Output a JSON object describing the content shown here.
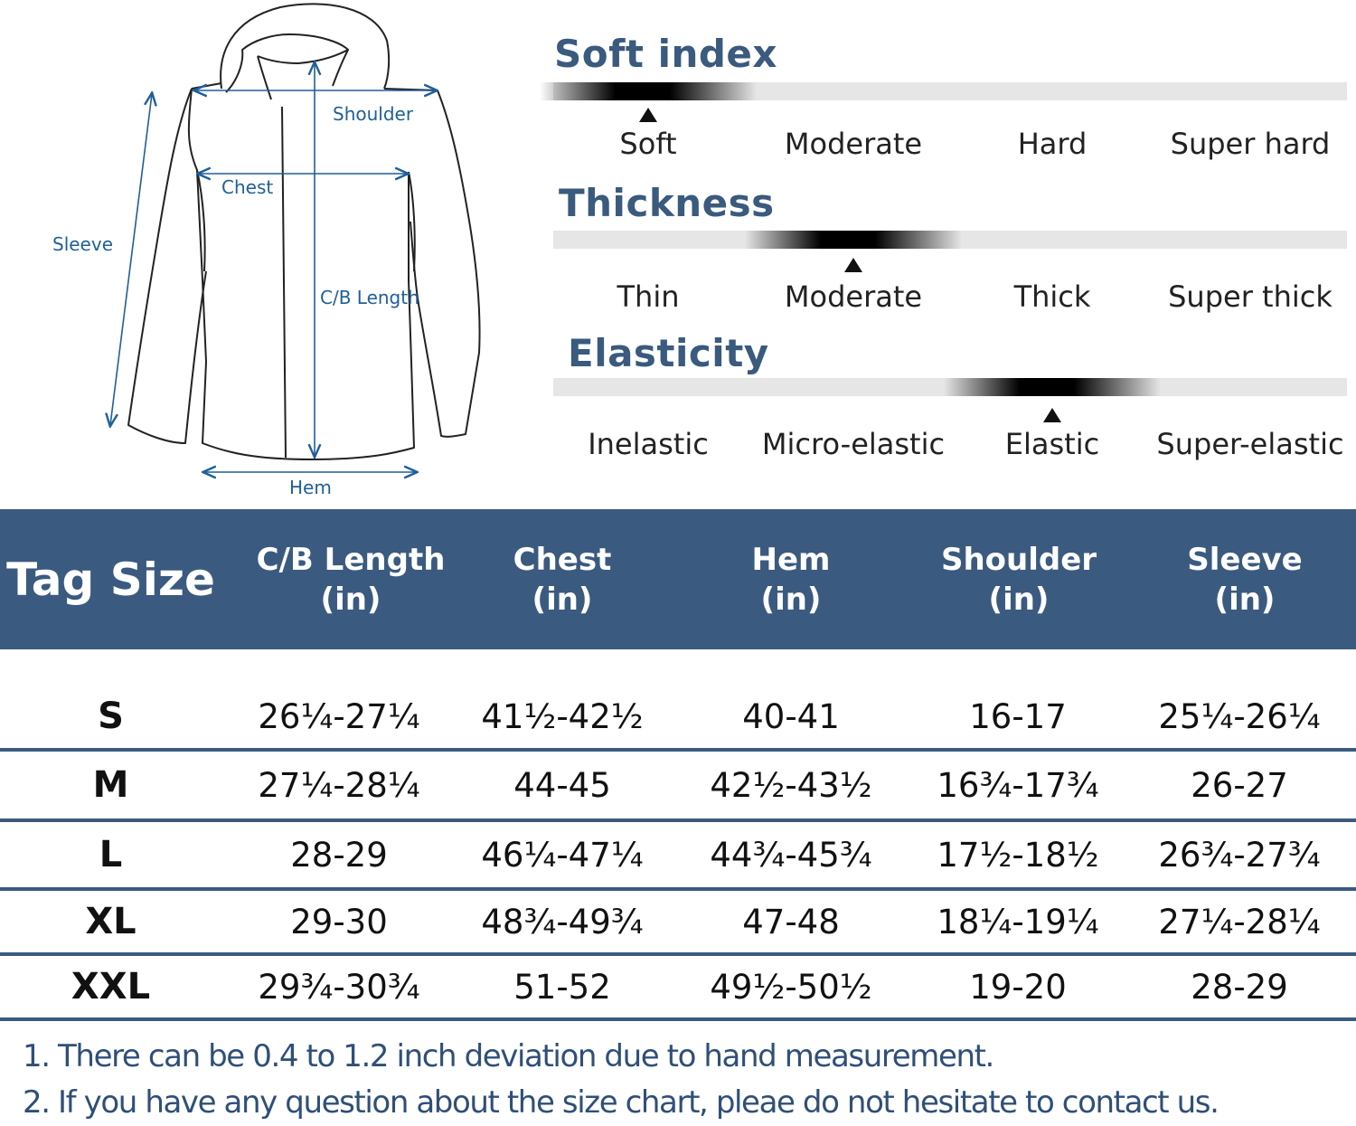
{
  "diagram": {
    "labels": {
      "shoulder": "Shoulder",
      "chest": "Chest",
      "sleeve": "Sleeve",
      "cb_length": "C/B Length",
      "hem": "Hem"
    }
  },
  "scales": [
    {
      "title": "Soft index",
      "options": [
        "Soft",
        "Moderate",
        "Hard",
        "Super hard"
      ],
      "selected_index": 0
    },
    {
      "title": "Thickness",
      "options": [
        "Thin",
        "Moderate",
        "Thick",
        "Super thick"
      ],
      "selected_index": 1
    },
    {
      "title": "Elasticity",
      "options": [
        "Inelastic",
        "Micro-elastic",
        "Elastic",
        "Super-elastic"
      ],
      "selected_index": 2
    }
  ],
  "size_table": {
    "header": {
      "tag_size": "Tag Size",
      "columns": [
        {
          "name": "C/B Length",
          "unit": "(in)"
        },
        {
          "name": "Chest",
          "unit": "(in)"
        },
        {
          "name": "Hem",
          "unit": "(in)"
        },
        {
          "name": "Shoulder",
          "unit": "(in)"
        },
        {
          "name": "Sleeve",
          "unit": "(in)"
        }
      ]
    },
    "rows": [
      {
        "size": "S",
        "values": [
          "26¼-27¼",
          "41½-42½",
          "40-41",
          "16-17",
          "25¼-26¼"
        ]
      },
      {
        "size": "M",
        "values": [
          "27¼-28¼",
          "44-45",
          "42½-43½",
          "16¾-17¾",
          "26-27"
        ]
      },
      {
        "size": "L",
        "values": [
          "28-29",
          "46¼-47¼",
          "44¾-45¾",
          "17½-18½",
          "26¾-27¾"
        ]
      },
      {
        "size": "XL",
        "values": [
          "29-30",
          "48¾-49¾",
          "47-48",
          "18¼-19¼",
          "27¼-28¼"
        ]
      },
      {
        "size": "XXL",
        "values": [
          "29¾-30¾",
          "51-52",
          "49½-50½",
          "19-20",
          "28-29"
        ]
      }
    ]
  },
  "notes": [
    "1. There can be 0.4 to 1.2 inch deviation due to hand measurement.",
    "2. If you have any question about the size chart, pleae do not hesitate to contact us."
  ],
  "colors": {
    "header_bg": "#3b5a7f",
    "title_text": "#3a5a7e",
    "dimension_line": "#1f5f9a",
    "note_text": "#2f4f78"
  }
}
